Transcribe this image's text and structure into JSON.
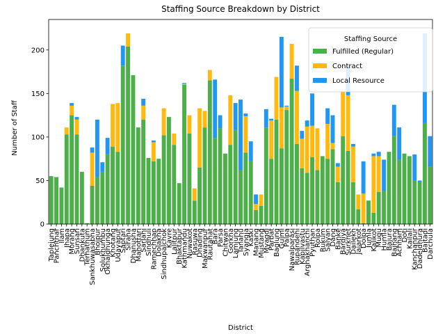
{
  "chart_data": {
    "type": "bar",
    "stacked": true,
    "title": "Staffing Source Breakdown by District",
    "xlabel": "District",
    "ylabel": "Number of Staff",
    "ylim": [
      0,
      235
    ],
    "yticks": [
      0,
      50,
      100,
      150,
      200
    ],
    "grid": false,
    "legend": {
      "title": "Staffing Source",
      "placement": "top-right"
    },
    "categories": [
      "Taplejung",
      "Panchthar",
      "Ilam",
      "Jhapa",
      "Morang",
      "Sunsari",
      "Dhankuta",
      "Terhathum",
      "Sankhuwasabha",
      "Bhojpur",
      "Solukhumbu",
      "Okhaldhunga",
      "Khotang",
      "Udayapur",
      "Saptari",
      "Siraha",
      "Dhanusha",
      "Mahottari",
      "Sarlahi",
      "Sindhuli",
      "Ramechhap",
      "Dolakha",
      "Sindhupalchok",
      "Kavre",
      "Lalitpur",
      "Bhaktapur",
      "Kathmandu",
      "Nuwakot",
      "Rasuwa",
      "Dhading",
      "Makwanpur",
      "Rautahat",
      "Bara",
      "Parsa",
      "Chitwan",
      "Gorkha",
      "Lamjung",
      "Tanahu",
      "Syangja",
      "Kaski",
      "Manang",
      "Mustang",
      "Myagdi",
      "Parbat",
      "Baglung",
      "Gulmi",
      "Palpa",
      "Nawalparasi",
      "Rupandehi",
      "Kapilvastu",
      "Arghakhanchi",
      "Pyuthan",
      "Rolpa",
      "Rukum",
      "Salyan",
      "Dang",
      "Banke",
      "Bardiya",
      "Surkhet",
      "Dailekh",
      "Jajarkot",
      "Dolpa",
      "Jumla",
      "Kalikot",
      "Mugu",
      "Humla",
      "Bajura",
      "Bajhang",
      "Achham",
      "Doti",
      "Kailali",
      "Kanchanpur",
      "Dadeldhura",
      "Baitadi",
      "Darchula"
    ],
    "series": [
      {
        "name": "Fulfilled (Regular)",
        "color": "#4daf4a",
        "values": [
          55,
          54,
          42,
          103,
          125,
          103,
          60,
          1,
          44,
          54,
          60,
          80,
          89,
          83,
          182,
          204,
          171,
          111,
          120,
          76,
          72,
          75,
          102,
          123,
          91,
          47,
          160,
          104,
          27,
          65,
          111,
          165,
          99,
          110,
          81,
          91,
          108,
          62,
          82,
          72,
          16,
          21,
          111,
          75,
          120,
          87,
          131,
          167,
          92,
          64,
          59,
          77,
          62,
          78,
          75,
          86,
          48,
          101,
          84,
          48,
          17,
          1,
          27,
          13,
          37,
          38,
          83,
          101,
          74,
          81,
          78,
          50,
          48,
          116,
          66
        ]
      },
      {
        "name": "Contract",
        "color": "#ffb90f",
        "values": [
          0,
          0,
          0,
          8,
          11,
          17,
          0,
          0,
          38,
          0,
          0,
          0,
          49,
          56,
          0,
          15,
          0,
          0,
          16,
          0,
          22,
          0,
          31,
          0,
          13,
          0,
          1,
          21,
          14,
          68,
          19,
          12,
          0,
          0,
          0,
          57,
          0,
          0,
          42,
          0,
          7,
          13,
          0,
          44,
          49,
          47,
          4,
          40,
          61,
          34,
          53,
          36,
          48,
          0,
          40,
          7,
          18,
          52,
          64,
          41,
          17,
          34,
          0,
          65,
          41,
          0,
          0,
          0,
          0,
          0,
          0,
          0,
          0,
          0,
          0
        ]
      },
      {
        "name": "Local Resource",
        "color": "#2196f3",
        "values": [
          0,
          0,
          0,
          0,
          3,
          3,
          0,
          0,
          6,
          66,
          11,
          19,
          0,
          0,
          23,
          0,
          0,
          0,
          8,
          0,
          2,
          0,
          0,
          0,
          0,
          0,
          1,
          0,
          0,
          0,
          0,
          0,
          67,
          15,
          0,
          0,
          31,
          81,
          3,
          23,
          11,
          0,
          21,
          2,
          0,
          81,
          1,
          0,
          29,
          9,
          7,
          37,
          0,
          0,
          18,
          32,
          4,
          0,
          35,
          3,
          0,
          37,
          0,
          3,
          5,
          36,
          0,
          36,
          37,
          0,
          0,
          30,
          2,
          103,
          35
        ]
      }
    ]
  }
}
